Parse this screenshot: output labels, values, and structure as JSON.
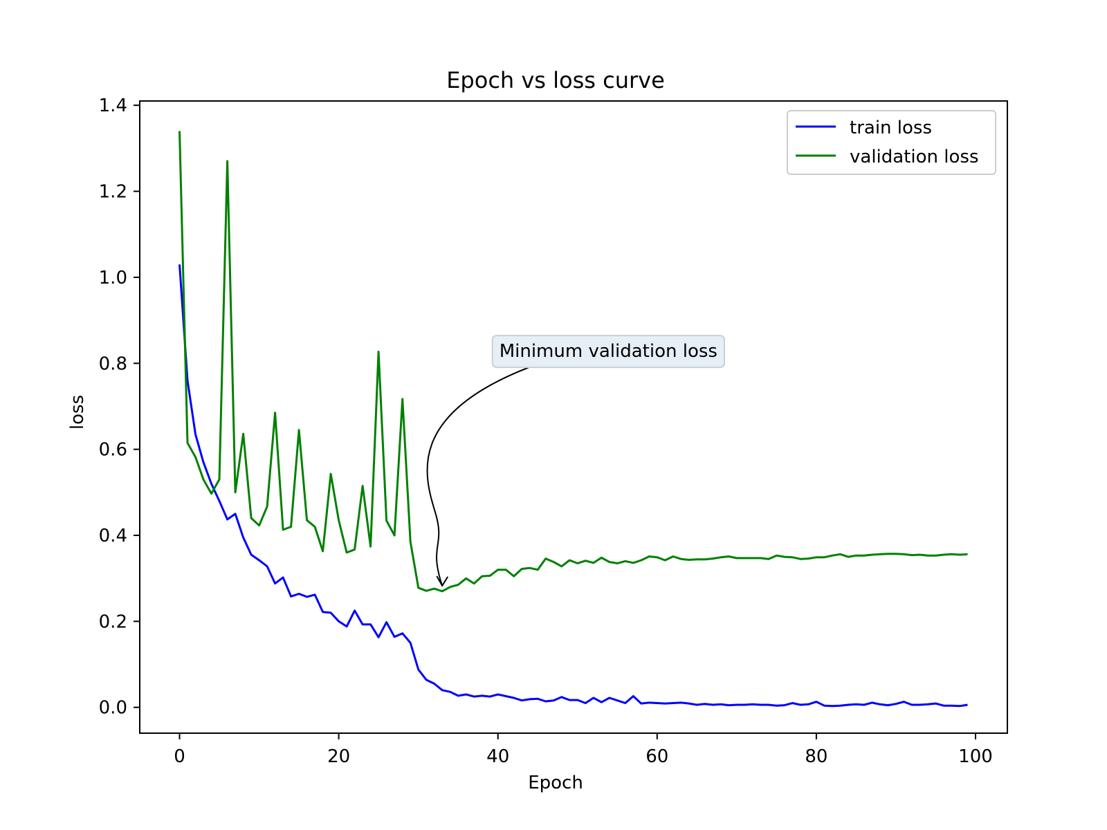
{
  "chart_data": {
    "type": "line",
    "title": "Epoch vs loss curve",
    "xlabel": "Epoch",
    "ylabel": "loss",
    "xlim": [
      -5,
      104
    ],
    "ylim": [
      -0.06,
      1.41
    ],
    "xticks": [
      0,
      20,
      40,
      60,
      80,
      100
    ],
    "yticks": [
      0.0,
      0.2,
      0.4,
      0.6,
      0.8,
      1.0,
      1.2,
      1.4
    ],
    "xtick_labels": [
      "0",
      "20",
      "40",
      "60",
      "80",
      "100"
    ],
    "ytick_labels": [
      "0.0",
      "0.2",
      "0.4",
      "0.6",
      "0.8",
      "1.0",
      "1.2",
      "1.4"
    ],
    "grid": false,
    "legend_position": "top-right",
    "series": [
      {
        "name": "train loss",
        "color": "#0000ff",
        "x": [
          0,
          1,
          2,
          3,
          4,
          5,
          6,
          7,
          8,
          9,
          10,
          11,
          12,
          13,
          14,
          15,
          16,
          17,
          18,
          19,
          20,
          21,
          22,
          23,
          24,
          25,
          26,
          27,
          28,
          29,
          30,
          31,
          32,
          33,
          34,
          35,
          36,
          37,
          38,
          39,
          40,
          41,
          42,
          43,
          44,
          45,
          46,
          47,
          48,
          49,
          50,
          51,
          52,
          53,
          54,
          55,
          56,
          57,
          58,
          59,
          60,
          61,
          62,
          63,
          64,
          65,
          66,
          67,
          68,
          69,
          70,
          71,
          72,
          73,
          74,
          75,
          76,
          77,
          78,
          79,
          80,
          81,
          82,
          83,
          84,
          85,
          86,
          87,
          88,
          89,
          90,
          91,
          92,
          93,
          94,
          95,
          96,
          97,
          98,
          99
        ],
        "values": [
          1.03,
          0.76,
          0.635,
          0.57,
          0.52,
          0.48,
          0.437,
          0.45,
          0.395,
          0.355,
          0.342,
          0.328,
          0.288,
          0.302,
          0.258,
          0.264,
          0.257,
          0.262,
          0.222,
          0.22,
          0.2,
          0.188,
          0.225,
          0.193,
          0.193,
          0.163,
          0.198,
          0.164,
          0.172,
          0.15,
          0.088,
          0.064,
          0.055,
          0.04,
          0.036,
          0.027,
          0.03,
          0.025,
          0.027,
          0.025,
          0.03,
          0.026,
          0.022,
          0.016,
          0.019,
          0.02,
          0.014,
          0.016,
          0.024,
          0.017,
          0.017,
          0.01,
          0.022,
          0.012,
          0.022,
          0.016,
          0.01,
          0.026,
          0.009,
          0.011,
          0.01,
          0.009,
          0.01,
          0.011,
          0.009,
          0.006,
          0.008,
          0.006,
          0.007,
          0.005,
          0.006,
          0.006,
          0.007,
          0.006,
          0.006,
          0.004,
          0.005,
          0.01,
          0.006,
          0.007,
          0.013,
          0.004,
          0.003,
          0.004,
          0.006,
          0.007,
          0.006,
          0.011,
          0.007,
          0.005,
          0.008,
          0.013,
          0.006,
          0.006,
          0.007,
          0.009,
          0.004,
          0.004,
          0.003,
          0.006
        ]
      },
      {
        "name": "validation loss",
        "color": "#008000",
        "x": [
          0,
          1,
          2,
          3,
          4,
          5,
          6,
          7,
          8,
          9,
          10,
          11,
          12,
          13,
          14,
          15,
          16,
          17,
          18,
          19,
          20,
          21,
          22,
          23,
          24,
          25,
          26,
          27,
          28,
          29,
          30,
          31,
          32,
          33,
          34,
          35,
          36,
          37,
          38,
          39,
          40,
          41,
          42,
          43,
          44,
          45,
          46,
          47,
          48,
          49,
          50,
          51,
          52,
          53,
          54,
          55,
          56,
          57,
          58,
          59,
          60,
          61,
          62,
          63,
          64,
          65,
          66,
          67,
          68,
          69,
          70,
          71,
          72,
          73,
          74,
          75,
          76,
          77,
          78,
          79,
          80,
          81,
          82,
          83,
          84,
          85,
          86,
          87,
          88,
          89,
          90,
          91,
          92,
          93,
          94,
          95,
          96,
          97,
          98,
          99
        ],
        "values": [
          1.34,
          0.615,
          0.582,
          0.53,
          0.497,
          0.53,
          1.27,
          0.5,
          0.636,
          0.44,
          0.423,
          0.467,
          0.685,
          0.413,
          0.42,
          0.645,
          0.435,
          0.42,
          0.363,
          0.543,
          0.435,
          0.36,
          0.367,
          0.515,
          0.374,
          0.827,
          0.434,
          0.4,
          0.717,
          0.385,
          0.278,
          0.271,
          0.276,
          0.27,
          0.28,
          0.285,
          0.3,
          0.288,
          0.305,
          0.306,
          0.32,
          0.32,
          0.305,
          0.322,
          0.324,
          0.32,
          0.346,
          0.338,
          0.328,
          0.342,
          0.335,
          0.341,
          0.336,
          0.348,
          0.338,
          0.335,
          0.34,
          0.336,
          0.342,
          0.351,
          0.349,
          0.342,
          0.351,
          0.345,
          0.343,
          0.344,
          0.344,
          0.346,
          0.349,
          0.351,
          0.347,
          0.347,
          0.347,
          0.347,
          0.345,
          0.353,
          0.35,
          0.349,
          0.345,
          0.346,
          0.349,
          0.349,
          0.353,
          0.356,
          0.35,
          0.353,
          0.353,
          0.355,
          0.356,
          0.357,
          0.357,
          0.356,
          0.354,
          0.355,
          0.353,
          0.353,
          0.355,
          0.356,
          0.355,
          0.356
        ]
      }
    ],
    "annotations": [
      {
        "text": "Minimum validation loss",
        "xy": [
          33,
          0.27
        ],
        "xytext": [
          40,
          0.818
        ]
      }
    ]
  }
}
